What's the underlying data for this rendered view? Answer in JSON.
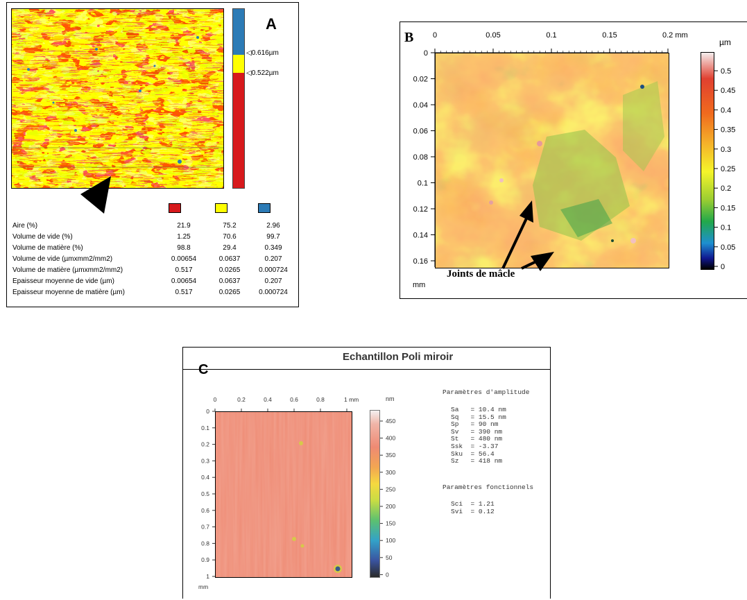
{
  "panel_a": {
    "letter": "A",
    "thresholds": [
      "0.616µm",
      "0.522µm"
    ],
    "colors": {
      "red": "#d7191c",
      "yellow": "#ffff00",
      "blue": "#2c7bb6"
    },
    "table": {
      "rows": [
        {
          "label": "Aire (%)",
          "values": [
            "21.9",
            "75.2",
            "2.96"
          ]
        },
        {
          "label": "Volume de vide (%)",
          "values": [
            "1.25",
            "70.6",
            "99.7"
          ]
        },
        {
          "label": "Volume de matière (%)",
          "values": [
            "98.8",
            "29.4",
            "0.349"
          ]
        },
        {
          "label": "Volume de vide (µmxmm2/mm2)",
          "values": [
            "0.00654",
            "0.0637",
            "0.207"
          ]
        },
        {
          "label": "Volume de matière (µmxmm2/mm2)",
          "values": [
            "0.517",
            "0.0265",
            "0.000724"
          ]
        },
        {
          "label": "Epaisseur moyenne de vide (µm)",
          "values": [
            "0.00654",
            "0.0637",
            "0.207"
          ]
        },
        {
          "label": "Epaisseur moyenne de matière (µm)",
          "values": [
            "0.517",
            "0.0265",
            "0.000724"
          ]
        }
      ]
    }
  },
  "panel_b": {
    "letter": "B",
    "x_ticks": [
      "0",
      "0.05",
      "0.1",
      "0.15",
      "0.2 mm"
    ],
    "y_ticks": [
      "0",
      "0.02",
      "0.04",
      "0.06",
      "0.08",
      "0.1",
      "0.12",
      "0.14",
      "0.16"
    ],
    "y_unit": "mm",
    "scale_unit": "µm",
    "scale_ticks": [
      "0.5",
      "0.45",
      "0.4",
      "0.35",
      "0.3",
      "0.25",
      "0.2",
      "0.15",
      "0.1",
      "0.05",
      "0"
    ],
    "annotation": "Joints de mâcle"
  },
  "panel_c": {
    "letter": "C",
    "title": "Echantillon Poli miroir",
    "x_ticks": [
      "0",
      "0.2",
      "0.4",
      "0.6",
      "0.8",
      "1 mm"
    ],
    "y_ticks": [
      "0",
      "0.1",
      "0.2",
      "0.3",
      "0.4",
      "0.5",
      "0.6",
      "0.7",
      "0.8",
      "0.9",
      "1"
    ],
    "y_unit": "mm",
    "scale_unit": "nm",
    "scale_ticks": [
      "450",
      "400",
      "350",
      "300",
      "250",
      "200",
      "150",
      "100",
      "50",
      "0"
    ],
    "params_amplitude_title": "Paramètres d'amplitude",
    "params_amplitude": [
      "Sa   = 10.4 nm",
      "Sq   = 15.5 nm",
      "Sp   = 90 nm",
      "Sv   = 390 nm",
      "St   = 480 nm",
      "Ssk  = -3.37",
      "Sku  = 56.4",
      "Sz   = 418 nm"
    ],
    "params_functional_title": "Paramètres fonctionnels",
    "params_functional": [
      "Sci  = 1.21",
      "Svi  = 0.12"
    ]
  }
}
